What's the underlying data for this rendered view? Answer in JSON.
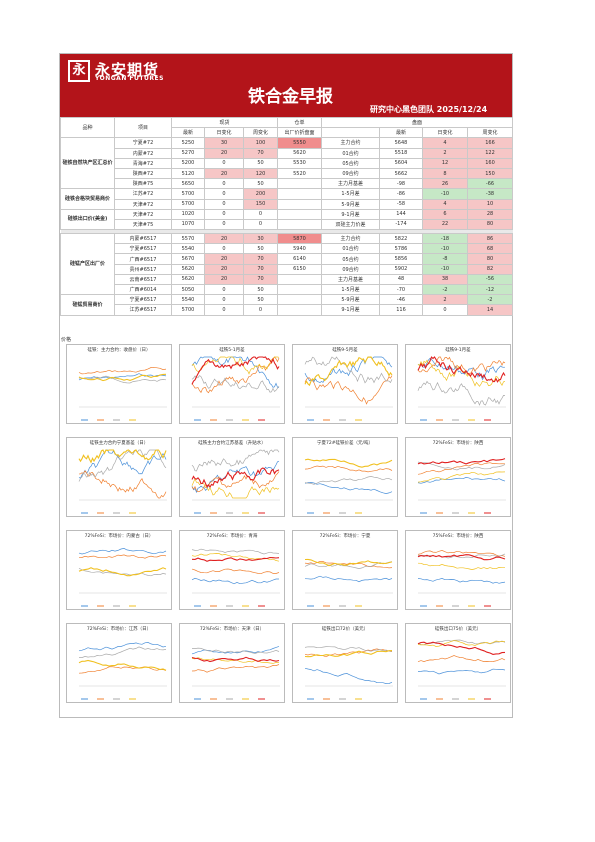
{
  "header": {
    "logo_mark": "永",
    "logo_cn": "永安期货",
    "logo_en": "YONGAN FUTURES",
    "title": "铁合金早报",
    "team": "研究中心黑色团队   2025/12/24"
  },
  "table": {
    "h_variety": "品种",
    "h_item": "项目",
    "h_spot": "现货",
    "h_warehouse": "仓单",
    "h_futures": "盘面",
    "h_latest": "最新",
    "h_day": "日变化",
    "h_week": "周变化",
    "h_factory": "出厂价折盘面",
    "groups": [
      {
        "cat": "硅铁自然块产区汇总价",
        "rows": [
          {
            "item": "宁夏#72",
            "v": "5250",
            "d": "30",
            "w": "100",
            "f": "5550",
            "c": "主力合约",
            "fl": "5648",
            "fd": "4",
            "fw": "166"
          },
          {
            "item": "内蒙#72",
            "v": "5270",
            "d": "20",
            "w": "70",
            "f": "5620",
            "c": "01合约",
            "fl": "5518",
            "fd": "2",
            "fw": "122"
          },
          {
            "item": "青海#72",
            "v": "5200",
            "d": "0",
            "w": "50",
            "f": "5530",
            "c": "05合约",
            "fl": "5604",
            "fd": "12",
            "fw": "160"
          },
          {
            "item": "陕西#72",
            "v": "5120",
            "d": "20",
            "w": "120",
            "f": "5520",
            "c": "09合约",
            "fl": "5662",
            "fd": "8",
            "fw": "150"
          },
          {
            "item": "陕西#75",
            "v": "5650",
            "d": "0",
            "w": "50",
            "f": "",
            "c": "主力月基差",
            "fl": "-98",
            "fd": "26",
            "fw": "-66"
          }
        ]
      },
      {
        "cat": "硅铁合格块贸易商价",
        "rows": [
          {
            "item": "江苏#72",
            "v": "5700",
            "d": "0",
            "w": "200",
            "f": "",
            "c": "1-5月差",
            "fl": "-86",
            "fd": "-10",
            "fw": "-38"
          },
          {
            "item": "天津#72",
            "v": "5700",
            "d": "0",
            "w": "150",
            "f": "",
            "c": "5-9月差",
            "fl": "-58",
            "fd": "4",
            "fw": "10"
          }
        ]
      },
      {
        "cat": "硅铁出口价(美金)",
        "rows": [
          {
            "item": "天津#72",
            "v": "1020",
            "d": "0",
            "w": "0",
            "f": "",
            "c": "9-1月差",
            "fl": "144",
            "fd": "6",
            "fw": "28"
          },
          {
            "item": "天津#75",
            "v": "1070",
            "d": "0",
            "w": "0",
            "f": "",
            "c": "双硅主力价差",
            "fl": "-174",
            "fd": "22",
            "fw": "80"
          }
        ]
      },
      {
        "cat": "硅锰产区出厂价",
        "rows": [
          {
            "item": "内蒙#6517",
            "v": "5570",
            "d": "20",
            "w": "30",
            "f": "5870",
            "c": "主力合约",
            "fl": "5822",
            "fd": "-18",
            "fw": "86"
          },
          {
            "item": "宁夏#6517",
            "v": "5540",
            "d": "0",
            "w": "50",
            "f": "5940",
            "c": "01合约",
            "fl": "5786",
            "fd": "-10",
            "fw": "68"
          },
          {
            "item": "广西#6517",
            "v": "5670",
            "d": "20",
            "w": "70",
            "f": "6140",
            "c": "05合约",
            "fl": "5856",
            "fd": "-8",
            "fw": "80"
          },
          {
            "item": "贵州#6517",
            "v": "5620",
            "d": "20",
            "w": "70",
            "f": "6150",
            "c": "09合约",
            "fl": "5902",
            "fd": "-10",
            "fw": "82"
          },
          {
            "item": "云南#6517",
            "v": "5620",
            "d": "20",
            "w": "70",
            "f": "",
            "c": "主力月基差",
            "fl": "48",
            "fd": "38",
            "fw": "-56"
          },
          {
            "item": "广西#6014",
            "v": "5050",
            "d": "0",
            "w": "50",
            "f": "",
            "c": "1-5月差",
            "fl": "-70",
            "fd": "-2",
            "fw": "-12"
          }
        ]
      },
      {
        "cat": "硅锰贸易商价",
        "rows": [
          {
            "item": "宁夏#6517",
            "v": "5540",
            "d": "0",
            "w": "50",
            "f": "",
            "c": "5-9月差",
            "fl": "-46",
            "fd": "2",
            "fw": "-2"
          },
          {
            "item": "江苏#6517",
            "v": "5700",
            "d": "0",
            "w": "0",
            "f": "",
            "c": "9-1月差",
            "fl": "116",
            "fd": "0",
            "fw": "14"
          }
        ]
      }
    ]
  },
  "charts_label": "价格",
  "charts": [
    {
      "title": "硅铁：主力合约：收盘价（日）"
    },
    {
      "title": "硅铁5-1月差"
    },
    {
      "title": "硅铁9-5月差"
    },
    {
      "title": "硅铁9-1月差"
    },
    {
      "title": "硅铁主力合约宁夏基差（日）"
    },
    {
      "title": "硅铁主力合约江苏基差（升贴水）"
    },
    {
      "title": "宁夏72#硅铁价差（元/吨）"
    },
    {
      "title": "72%FeSi：市场价：陕西"
    },
    {
      "title": "72%FeSi：市场价：内蒙古（日）"
    },
    {
      "title": "72%FeSi：市场价：青海"
    },
    {
      "title": "72%FeSi：市场价：宁夏"
    },
    {
      "title": "75%FeSi：市场价：陕西"
    },
    {
      "title": "72%FeSi：市场价：江苏（日）"
    },
    {
      "title": "72%FeSi：市场价：天津（日）"
    },
    {
      "title": "硅铁出口72价（美元）"
    },
    {
      "title": "硅铁出口75价（美元）"
    }
  ],
  "colors": {
    "banner": "#b3141a",
    "pink": "#f6c6c6",
    "red": "#f08d8d",
    "green": "#c6e8c6"
  }
}
